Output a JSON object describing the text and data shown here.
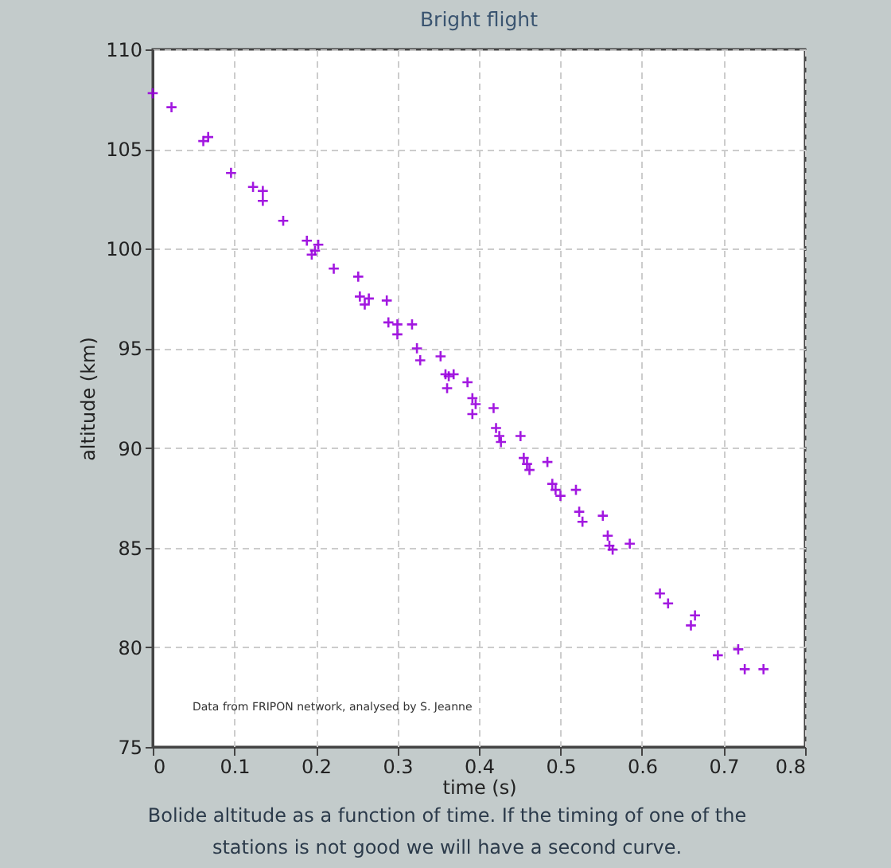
{
  "chart_data": {
    "type": "scatter",
    "title": "Bright flight",
    "xlabel": "time (s)",
    "ylabel": "altitude (km)",
    "annotations": [
      "Data from FRIPON network, analysed by S. Jeanne",
      "Bolide altitude as a function of time. If the timing of one of the stations is not good we will have a second curve."
    ],
    "x": [
      0.0,
      0.023,
      0.062,
      0.068,
      0.096,
      0.123,
      0.135,
      0.135,
      0.16,
      0.189,
      0.195,
      0.199,
      0.203,
      0.222,
      0.252,
      0.254,
      0.26,
      0.265,
      0.287,
      0.289,
      0.3,
      0.3,
      0.318,
      0.324,
      0.328,
      0.353,
      0.359,
      0.361,
      0.363,
      0.369,
      0.386,
      0.392,
      0.396,
      0.392,
      0.418,
      0.421,
      0.425,
      0.427,
      0.451,
      0.455,
      0.459,
      0.462,
      0.484,
      0.49,
      0.494,
      0.5,
      0.519,
      0.523,
      0.527,
      0.552,
      0.558,
      0.56,
      0.564,
      0.585,
      0.622,
      0.632,
      0.66,
      0.665,
      0.693,
      0.718,
      0.726,
      0.749
    ],
    "series": [
      {
        "color": "#9900dd",
        "values": [
          107.8,
          107.1,
          105.4,
          105.6,
          103.8,
          103.1,
          102.9,
          102.4,
          101.4,
          100.4,
          99.7,
          99.9,
          100.2,
          99.0,
          98.6,
          97.6,
          97.2,
          97.5,
          97.4,
          96.3,
          96.2,
          95.7,
          96.2,
          95.0,
          94.4,
          94.6,
          93.7,
          93.0,
          93.6,
          93.7,
          93.3,
          92.5,
          92.2,
          91.7,
          92.0,
          91.0,
          90.6,
          90.3,
          90.6,
          89.5,
          89.2,
          88.9,
          89.3,
          88.2,
          87.9,
          87.6,
          87.9,
          86.8,
          86.3,
          86.6,
          85.6,
          85.1,
          84.9,
          85.2,
          82.7,
          82.2,
          81.1,
          81.6,
          79.6,
          79.9,
          78.9,
          78.9
        ]
      }
    ],
    "xlim": [
      0,
      0.8
    ],
    "xticks": [
      0,
      0.1,
      0.2,
      0.3,
      0.4,
      0.5,
      0.6,
      0.7,
      0.8
    ],
    "ylim": [
      75,
      110
    ],
    "yticks": [
      75,
      80,
      85,
      90,
      95,
      100,
      105,
      110
    ],
    "grid": true,
    "marker": "cross"
  }
}
